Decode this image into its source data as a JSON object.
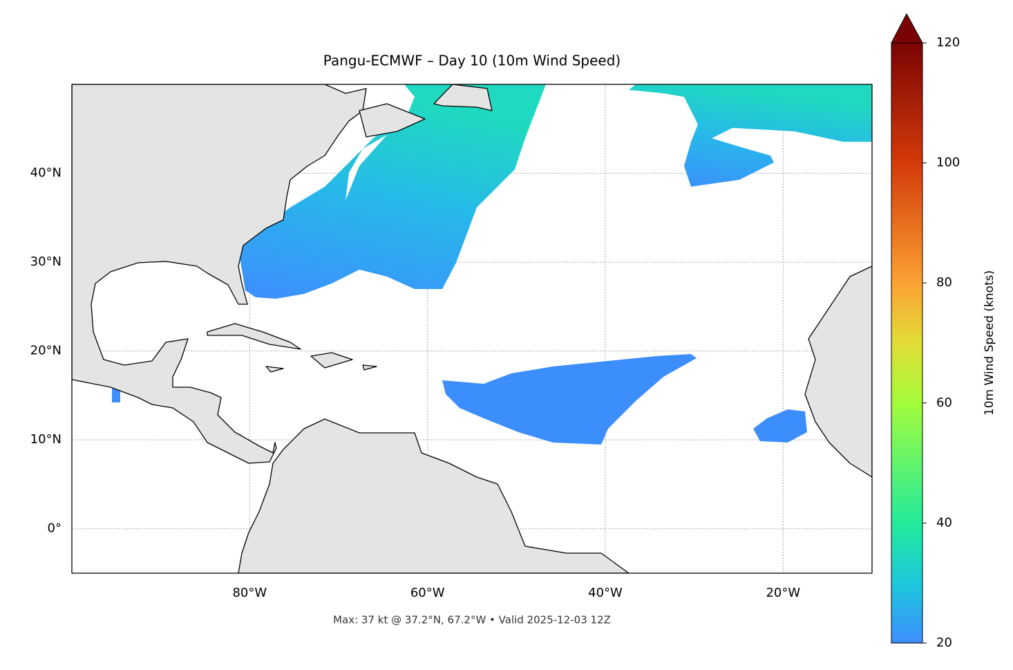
{
  "chart_data": {
    "type": "map",
    "title": "Pangu-ECMWF – Day 10 (10m Wind Speed)",
    "footnote": "Max: 37 kt @ 37.2°N, 67.2°W • Valid 2025-12-03 12Z",
    "xlim": [
      -100,
      -10
    ],
    "ylim": [
      -5,
      50
    ],
    "xticks": [
      {
        "value": -80,
        "label": "80°W"
      },
      {
        "value": -60,
        "label": "60°W"
      },
      {
        "value": -40,
        "label": "40°W"
      },
      {
        "value": -20,
        "label": "20°W"
      }
    ],
    "yticks": [
      {
        "value": 0,
        "label": "0°"
      },
      {
        "value": 10,
        "label": "10°N"
      },
      {
        "value": 20,
        "label": "20°N"
      },
      {
        "value": 30,
        "label": "30°N"
      },
      {
        "value": 40,
        "label": "40°N"
      }
    ],
    "grid": true,
    "colorbar": {
      "label": "10m Wind Speed (knots)",
      "lim": [
        20,
        120
      ],
      "ticks": [
        20,
        40,
        60,
        80,
        100,
        120
      ]
    }
  }
}
